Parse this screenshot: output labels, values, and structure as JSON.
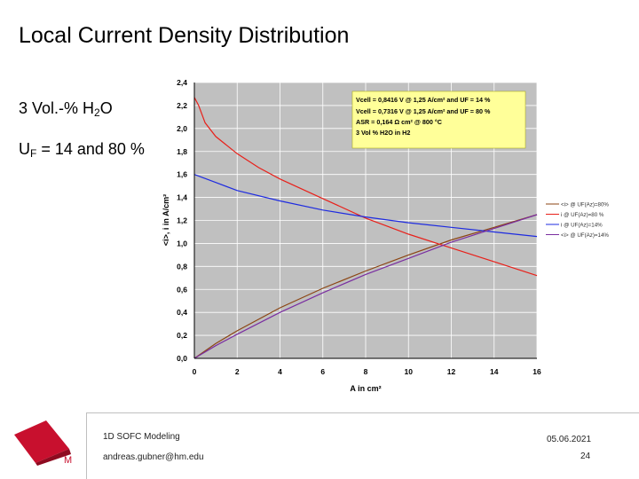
{
  "slide": {
    "title": "Local Current Density Distribution",
    "subtitle1_main": "3 Vol.-% H",
    "subtitle1_sub": "2",
    "subtitle1_end": "O",
    "subtitle2_main": "U",
    "subtitle2_sub": "F",
    "subtitle2_end": " = 14 and 80 %"
  },
  "footer": {
    "course": "1D SOFC Modeling",
    "email": "andreas.gubner@hm.edu",
    "date": "05.06.2021",
    "page": "24",
    "logo_letter": "M"
  },
  "colors": {
    "plot_bg": "#c0c0c0",
    "grid": "#ffffff",
    "box_bg": "#ffff99",
    "red": "#e8201a",
    "blue": "#1e2be0",
    "brown": "#8b4513",
    "purple": "#7a2ea0",
    "logo": "#c8102e"
  },
  "chart_data": {
    "type": "line",
    "xlabel": "A  in cm²",
    "ylabel": "<i>, i  in A/cm²",
    "xlim": [
      0,
      16
    ],
    "ylim": [
      0,
      2.4
    ],
    "x_ticks": [
      "0",
      "2",
      "4",
      "6",
      "8",
      "10",
      "12",
      "14",
      "16"
    ],
    "y_ticks": [
      "0,0",
      "0,2",
      "0,4",
      "0,6",
      "0,8",
      "1,0",
      "1,2",
      "1,4",
      "1,6",
      "1,8",
      "2,0",
      "2,2",
      "2,4"
    ],
    "grid": true,
    "legend_position": "right",
    "annotation": [
      "Vcell = 0,8416 V @ 1,25 A/cm² and UF = 14 %",
      "Vcell = 0,7316 V @ 1,25 A/cm² and UF = 80 %",
      "ASR = 0,164 Ω cm² @ 800 °C",
      "3 Vol % H2O in H2"
    ],
    "series": [
      {
        "name": "<i> @ UF(Az)=80%",
        "color": "brown",
        "x": [
          0,
          1,
          2,
          4,
          6,
          8,
          10,
          12,
          14,
          16
        ],
        "y": [
          0,
          0.13,
          0.24,
          0.44,
          0.61,
          0.76,
          0.9,
          1.03,
          1.14,
          1.25
        ]
      },
      {
        "name": "i @ UF(Az)=80 %",
        "color": "red",
        "x": [
          0,
          0.2,
          0.5,
          1,
          2,
          3,
          4,
          6,
          8,
          10,
          12,
          14,
          16
        ],
        "y": [
          2.27,
          2.2,
          2.05,
          1.93,
          1.78,
          1.66,
          1.56,
          1.39,
          1.22,
          1.08,
          0.96,
          0.84,
          0.72
        ]
      },
      {
        "name": "i @ UF(Az)=14%",
        "color": "blue",
        "x": [
          0,
          1,
          2,
          4,
          6,
          8,
          10,
          12,
          14,
          16
        ],
        "y": [
          1.6,
          1.53,
          1.46,
          1.37,
          1.29,
          1.23,
          1.18,
          1.14,
          1.1,
          1.06
        ]
      },
      {
        "name": "<i> @ UF(Az)=14%",
        "color": "purple",
        "x": [
          0,
          1,
          2,
          4,
          6,
          8,
          10,
          12,
          14,
          16
        ],
        "y": [
          0,
          0.11,
          0.21,
          0.4,
          0.57,
          0.73,
          0.87,
          1.01,
          1.13,
          1.25
        ]
      }
    ]
  }
}
